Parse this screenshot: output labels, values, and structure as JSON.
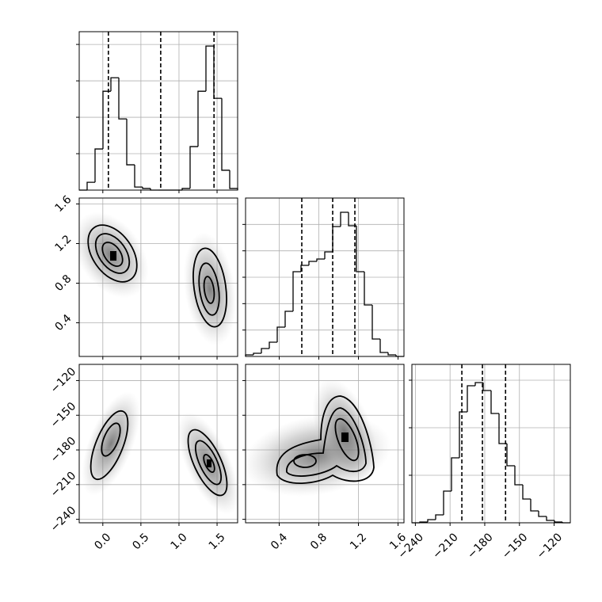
{
  "chart_data": [
    {
      "type": "histogram",
      "xlim": [
        -0.31,
        1.77
      ],
      "xticks": [
        0,
        0.5,
        1,
        1.5
      ],
      "ylim": [
        0,
        870
      ],
      "yticks": [
        200,
        400,
        600,
        800
      ],
      "grid": true,
      "color": "#000000",
      "bins": [
        -0.31,
        -0.206,
        -0.102,
        0.002,
        0.106,
        0.21,
        0.314,
        0.418,
        0.522,
        0.626,
        0.73,
        0.834,
        0.938,
        1.042,
        1.146,
        1.25,
        1.354,
        1.458,
        1.562,
        1.666,
        1.77
      ],
      "values": [
        0,
        43,
        226,
        543,
        617,
        391,
        139,
        17,
        9,
        0,
        0,
        0,
        0,
        9,
        239,
        543,
        791,
        504,
        109,
        9
      ],
      "quantiles": [
        0.073,
        0.76,
        1.46
      ]
    },
    {
      "type": "hist2d",
      "xlim": [
        -0.31,
        1.77
      ],
      "xticks": [
        0,
        0.5,
        1,
        1.5
      ],
      "ylim": [
        0.06,
        1.66
      ],
      "yticks": [
        0.4,
        0.8,
        1.2,
        1.6
      ],
      "grid": true
    },
    {
      "type": "hist2d",
      "xlim": [
        -0.31,
        1.77
      ],
      "xticks": [
        {
          "value": 0,
          "label": "0.0"
        },
        0.5,
        {
          "value": 1,
          "label": "1.0"
        },
        1.5
      ],
      "ylim": [
        -243,
        -106
      ],
      "yticks": [
        {
          "value": -240,
          "label": "−240"
        },
        {
          "value": -210,
          "label": "−210"
        },
        {
          "value": -180,
          "label": "−180"
        },
        {
          "value": -150,
          "label": "−150"
        },
        {
          "value": -120,
          "label": "−120"
        }
      ],
      "grid": true
    },
    {
      "type": "histogram",
      "xlim": [
        0.06,
        1.66
      ],
      "xticks": [
        0.4,
        0.8,
        1.2,
        1.6
      ],
      "ylim": [
        0,
        1200
      ],
      "yticks": [
        200,
        400,
        600,
        800,
        1000
      ],
      "grid": true,
      "color": "#000000",
      "bins": [
        0.06,
        0.14,
        0.22,
        0.3,
        0.38,
        0.46,
        0.54,
        0.62,
        0.7,
        0.78,
        0.86,
        0.94,
        1.02,
        1.1,
        1.18,
        1.26,
        1.34,
        1.42,
        1.5,
        1.58,
        1.66
      ],
      "values": [
        12,
        24,
        60,
        108,
        222,
        342,
        642,
        690,
        720,
        738,
        792,
        984,
        1092,
        990,
        642,
        390,
        132,
        30,
        12,
        0
      ],
      "quantiles": [
        0.628,
        0.94,
        1.164
      ]
    },
    {
      "type": "hist2d",
      "xlim": [
        0.06,
        1.66
      ],
      "xticks": [
        0.4,
        0.8,
        1.2,
        1.6
      ],
      "ylim": [
        -243,
        -106
      ],
      "yticks": [
        -240,
        -210,
        -180,
        -150,
        -120
      ],
      "grid": true
    },
    {
      "type": "histogram",
      "xlim": [
        -243,
        -106
      ],
      "xticks": [
        {
          "value": -240,
          "label": "−240"
        },
        {
          "value": -210,
          "label": "−210"
        },
        {
          "value": -180,
          "label": "−180"
        },
        {
          "value": -150,
          "label": "−150"
        },
        {
          "value": -120,
          "label": "−120"
        }
      ],
      "ylim": [
        0,
        1000
      ],
      "yticks": [
        300,
        600,
        900
      ],
      "grid": true,
      "color": "#000000",
      "bins": [
        -243,
        -236.15,
        -229.3,
        -222.45,
        -215.6,
        -208.75,
        -201.9,
        -195.05,
        -188.2,
        -181.35,
        -174.5,
        -167.65,
        -160.8,
        -153.95,
        -147.1,
        -140.25,
        -133.4,
        -126.55,
        -119.7,
        -112.85,
        -106
      ],
      "values": [
        0,
        5,
        20,
        50,
        200,
        410,
        700,
        865,
        885,
        835,
        690,
        500,
        360,
        240,
        150,
        75,
        40,
        15,
        5,
        0
      ],
      "quantiles": [
        -199.8,
        -182,
        -162
      ]
    }
  ]
}
